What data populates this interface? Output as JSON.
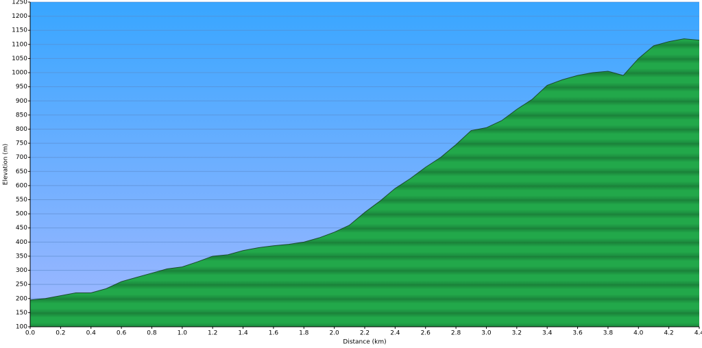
{
  "chart_data": {
    "type": "area",
    "x_label": "Distance   (km)",
    "y_label": "Elevation (m)",
    "x": [
      0.0,
      0.1,
      0.2,
      0.3,
      0.4,
      0.5,
      0.6,
      0.7,
      0.8,
      0.9,
      1.0,
      1.1,
      1.2,
      1.3,
      1.4,
      1.5,
      1.6,
      1.7,
      1.8,
      1.9,
      2.0,
      2.1,
      2.2,
      2.3,
      2.4,
      2.5,
      2.6,
      2.7,
      2.8,
      2.9,
      3.0,
      3.1,
      3.2,
      3.3,
      3.4,
      3.5,
      3.6,
      3.7,
      3.8,
      3.9,
      4.0,
      4.1,
      4.2,
      4.3,
      4.4
    ],
    "series": [
      {
        "name": "Elevation",
        "color": "#22a84a",
        "values": [
          195,
          200,
          210,
          220,
          220,
          235,
          260,
          275,
          290,
          305,
          312,
          330,
          350,
          355,
          370,
          380,
          387,
          392,
          400,
          415,
          435,
          460,
          505,
          545,
          590,
          625,
          665,
          700,
          745,
          795,
          805,
          830,
          870,
          905,
          955,
          975,
          990,
          1000,
          1005,
          990,
          1050,
          1095,
          1110,
          1120,
          1115
        ]
      }
    ],
    "xlim": [
      0,
      4.4
    ],
    "xticks": [
      {
        "value": 0,
        "label": "0.0"
      },
      0.2,
      0.4,
      0.6,
      0.8,
      {
        "value": 1,
        "label": "1.0"
      },
      1.2,
      1.4,
      1.6,
      1.8,
      {
        "value": 2,
        "label": "2.0"
      },
      2.2,
      2.4,
      2.6,
      2.8,
      {
        "value": 3,
        "label": "3.0"
      },
      3.2,
      3.4,
      3.6,
      3.8,
      {
        "value": 4,
        "label": "4.0"
      },
      4.2,
      4.4
    ],
    "ylim": [
      100,
      1250
    ],
    "yticks": [
      100,
      150,
      200,
      250,
      300,
      350,
      400,
      450,
      500,
      550,
      600,
      650,
      700,
      750,
      800,
      850,
      900,
      950,
      1000,
      1050,
      1100,
      1150,
      1200,
      1250
    ],
    "grid": true
  }
}
